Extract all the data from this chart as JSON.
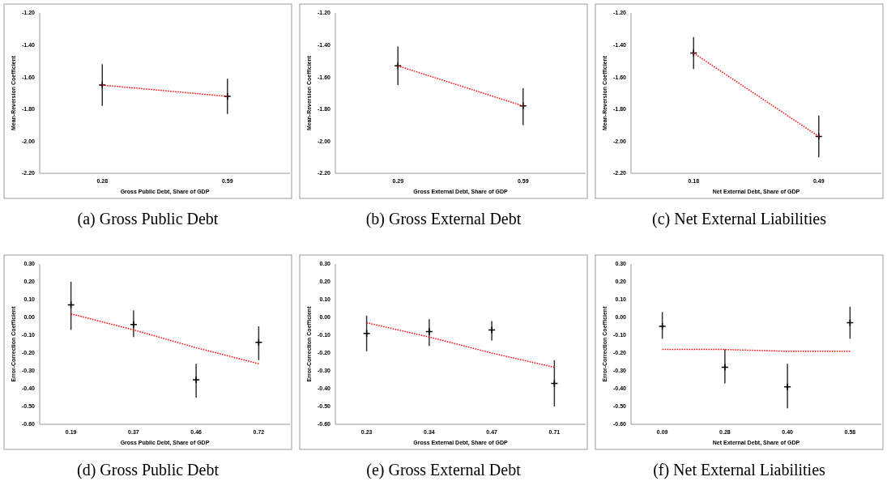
{
  "chart_data": [
    {
      "type": "scatter",
      "title": "(a) Gross Public Debt",
      "xlabel": "Gross Public Debt, Share of GDP",
      "ylabel": "Mean-Reversion Coefficient",
      "categories": [
        "0.28",
        "0.59"
      ],
      "ylim": [
        -2.2,
        -1.2
      ],
      "yticks": [
        {
          "value": -2.2,
          "label": "-2.20"
        },
        {
          "value": -2.0,
          "label": "-2.00"
        },
        {
          "value": -1.8,
          "label": "-1.80"
        },
        {
          "value": -1.6,
          "label": "-1.60"
        },
        {
          "value": -1.4,
          "label": "-1.40"
        },
        {
          "value": -1.2,
          "label": "-1.20"
        }
      ],
      "grid": false,
      "series": [
        {
          "type": "scatter",
          "color": "#000000",
          "marker": "cross",
          "x": [
            "0.28",
            "0.59"
          ],
          "values": [
            -1.65,
            -1.72
          ],
          "errors": [
            [
              -1.78,
              -1.52
            ],
            [
              -1.83,
              -1.61
            ]
          ]
        },
        {
          "type": "line",
          "color": "#ff0000",
          "line_style": "dotted",
          "values": [
            -1.65,
            -1.72
          ]
        }
      ]
    },
    {
      "type": "scatter",
      "title": "(b) Gross External Debt",
      "xlabel": "Gross External Debt, Share of GDP",
      "ylabel": "Mean-Reversion Coefficient",
      "categories": [
        "0.29",
        "0.59"
      ],
      "ylim": [
        -2.2,
        -1.2
      ],
      "yticks": [
        {
          "value": -2.2,
          "label": "-2.20"
        },
        {
          "value": -2.0,
          "label": "-2.00"
        },
        {
          "value": -1.8,
          "label": "-1.80"
        },
        {
          "value": -1.6,
          "label": "-1.60"
        },
        {
          "value": -1.4,
          "label": "-1.40"
        },
        {
          "value": -1.2,
          "label": "-1.20"
        }
      ],
      "grid": false,
      "series": [
        {
          "type": "scatter",
          "color": "#000000",
          "marker": "cross",
          "x": [
            "0.29",
            "0.59"
          ],
          "values": [
            -1.53,
            -1.78
          ],
          "errors": [
            [
              -1.65,
              -1.41
            ],
            [
              -1.9,
              -1.67
            ]
          ]
        },
        {
          "type": "line",
          "color": "#ff0000",
          "line_style": "dotted",
          "values": [
            -1.53,
            -1.78
          ]
        }
      ]
    },
    {
      "type": "scatter",
      "title": "(c) Net External Liabilities",
      "xlabel": "Net External Debt, Share of GDP",
      "ylabel": "Mean-Reversion Coefficient",
      "categories": [
        "0.18",
        "0.49"
      ],
      "ylim": [
        -2.2,
        -1.2
      ],
      "yticks": [
        {
          "value": -2.2,
          "label": "-2.20"
        },
        {
          "value": -2.0,
          "label": "-2.00"
        },
        {
          "value": -1.8,
          "label": "-1.80"
        },
        {
          "value": -1.6,
          "label": "-1.60"
        },
        {
          "value": -1.4,
          "label": "-1.40"
        },
        {
          "value": -1.2,
          "label": "-1.20"
        }
      ],
      "grid": false,
      "series": [
        {
          "type": "scatter",
          "color": "#000000",
          "marker": "cross",
          "x": [
            "0.18",
            "0.49"
          ],
          "values": [
            -1.45,
            -1.97
          ],
          "errors": [
            [
              -1.55,
              -1.35
            ],
            [
              -2.1,
              -1.84
            ]
          ]
        },
        {
          "type": "line",
          "color": "#ff0000",
          "line_style": "dotted",
          "values": [
            -1.45,
            -1.97
          ]
        }
      ]
    },
    {
      "type": "scatter",
      "title": "(d) Gross Public Debt",
      "xlabel": "Gross Public Debt, Share of GDP",
      "ylabel": "Error-Correction  Coefficient",
      "categories": [
        "0.19",
        "0.37",
        "0.46",
        "0.72"
      ],
      "ylim": [
        -0.6,
        0.3
      ],
      "yticks": [
        {
          "value": -0.6,
          "label": "-0.60"
        },
        {
          "value": -0.5,
          "label": "-0.50"
        },
        {
          "value": -0.4,
          "label": "-0.40"
        },
        {
          "value": -0.3,
          "label": "-0.30"
        },
        {
          "value": -0.2,
          "label": "-0.20"
        },
        {
          "value": -0.1,
          "label": "-0.10"
        },
        {
          "value": 0,
          "label": "0.00"
        },
        {
          "value": 0.1,
          "label": "0.10"
        },
        {
          "value": 0.2,
          "label": "0.20"
        },
        {
          "value": 0.3,
          "label": "0.30"
        }
      ],
      "grid": false,
      "series": [
        {
          "type": "scatter",
          "color": "#000000",
          "marker": "cross",
          "x": [
            "0.19",
            "0.37",
            "0.46",
            "0.72"
          ],
          "values": [
            0.07,
            -0.04,
            -0.35,
            -0.14
          ],
          "errors": [
            [
              -0.07,
              0.2
            ],
            [
              -0.11,
              0.04
            ],
            [
              -0.45,
              -0.26
            ],
            [
              -0.24,
              -0.05
            ]
          ]
        },
        {
          "type": "line",
          "color": "#ff0000",
          "line_style": "dotted",
          "values": [
            0.02,
            -0.07,
            -0.17,
            -0.26
          ]
        }
      ]
    },
    {
      "type": "scatter",
      "title": "(e) Gross External Debt",
      "xlabel": "Gross External Debt, Share of GDP",
      "ylabel": "Error-Correction  Coefficient",
      "categories": [
        "0.23",
        "0.34",
        "0.47",
        "0.71"
      ],
      "ylim": [
        -0.6,
        0.3
      ],
      "yticks": [
        {
          "value": -0.6,
          "label": "-0.60"
        },
        {
          "value": -0.5,
          "label": "-0.50"
        },
        {
          "value": -0.4,
          "label": "-0.40"
        },
        {
          "value": -0.3,
          "label": "-0.30"
        },
        {
          "value": -0.2,
          "label": "-0.20"
        },
        {
          "value": -0.1,
          "label": "-0.10"
        },
        {
          "value": 0,
          "label": "0.00"
        },
        {
          "value": 0.1,
          "label": "0.10"
        },
        {
          "value": 0.2,
          "label": "0.20"
        },
        {
          "value": 0.3,
          "label": "0.30"
        }
      ],
      "grid": false,
      "series": [
        {
          "type": "scatter",
          "color": "#000000",
          "marker": "cross",
          "x": [
            "0.23",
            "0.34",
            "0.47",
            "0.71"
          ],
          "values": [
            -0.09,
            -0.08,
            -0.07,
            -0.37
          ],
          "errors": [
            [
              -0.19,
              0.01
            ],
            [
              -0.16,
              -0.01
            ],
            [
              -0.13,
              -0.02
            ],
            [
              -0.5,
              -0.24
            ]
          ]
        },
        {
          "type": "line",
          "color": "#ff0000",
          "line_style": "dotted",
          "values": [
            -0.03,
            -0.11,
            -0.2,
            -0.28
          ]
        }
      ]
    },
    {
      "type": "scatter",
      "title": "(f) Net External Liabilities",
      "xlabel": "Net External Debt, Share of GDP",
      "ylabel": "Error-Correction  Coefficient",
      "categories": [
        "0.09",
        "0.28",
        "0.40",
        "0.58"
      ],
      "ylim": [
        -0.6,
        0.3
      ],
      "yticks": [
        {
          "value": -0.6,
          "label": "-0.60"
        },
        {
          "value": -0.5,
          "label": "-0.50"
        },
        {
          "value": -0.4,
          "label": "-0.40"
        },
        {
          "value": -0.3,
          "label": "-0.30"
        },
        {
          "value": -0.2,
          "label": "-0.20"
        },
        {
          "value": -0.1,
          "label": "-0.10"
        },
        {
          "value": 0,
          "label": "0.00"
        },
        {
          "value": 0.1,
          "label": "0.10"
        },
        {
          "value": 0.2,
          "label": "0.20"
        },
        {
          "value": 0.3,
          "label": "0.30"
        }
      ],
      "grid": false,
      "series": [
        {
          "type": "scatter",
          "color": "#000000",
          "marker": "cross",
          "x": [
            "0.09",
            "0.28",
            "0.40",
            "0.58"
          ],
          "values": [
            -0.05,
            -0.28,
            -0.39,
            -0.03
          ],
          "errors": [
            [
              -0.12,
              0.03
            ],
            [
              -0.37,
              -0.18
            ],
            [
              -0.51,
              -0.26
            ],
            [
              -0.12,
              0.06
            ]
          ]
        },
        {
          "type": "line",
          "color": "#ff0000",
          "line_style": "dotted",
          "values": [
            -0.18,
            -0.18,
            -0.19,
            -0.19
          ]
        }
      ]
    }
  ]
}
